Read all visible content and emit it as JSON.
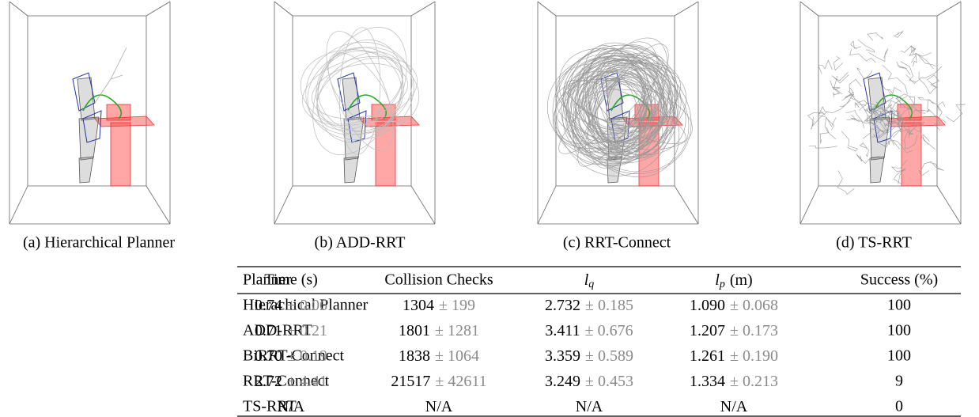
{
  "figures": [
    {
      "caption": "(a) Hierarchical Planner"
    },
    {
      "caption": "(b) ADD-RRT"
    },
    {
      "caption": "(c) RRT-Connect"
    },
    {
      "caption": "(d) TS-RRT"
    }
  ],
  "table": {
    "header": [
      {
        "text": "Planner"
      },
      {
        "text": "Time (s)"
      },
      {
        "text": "Collision Checks"
      },
      {
        "symbol": "l",
        "sub": "q"
      },
      {
        "symbol": "l",
        "sub": "p",
        "unit": "(m)"
      },
      {
        "text": "Success (%)"
      }
    ],
    "rows": [
      {
        "planner": "Hierachical Planner",
        "cells": [
          {
            "mean": "0.74",
            "std": "± 0.06"
          },
          {
            "mean": "1304",
            "std": "± 199"
          },
          {
            "mean": "2.732",
            "std": "± 0.185"
          },
          {
            "mean": "1.090",
            "std": "± 0.068"
          }
        ],
        "success": "100"
      },
      {
        "planner": "ADD-RRT",
        "cells": [
          {
            "mean": "0.71",
            "std": "± 0.21"
          },
          {
            "mean": "1801",
            "std": "± 1281"
          },
          {
            "mean": "3.411",
            "std": "± 0.676"
          },
          {
            "mean": "1.207",
            "std": "± 0.173"
          }
        ],
        "success": "100"
      },
      {
        "planner": "BiRRT-Connect",
        "cells": [
          {
            "mean": "0.70",
            "std": "± 0.19"
          },
          {
            "mean": "1838",
            "std": "± 1064"
          },
          {
            "mean": "3.359",
            "std": "± 0.589"
          },
          {
            "mean": "1.261",
            "std": "± 0.190"
          }
        ],
        "success": "100"
      },
      {
        "planner": "RRT-Connect",
        "cells": [
          {
            "mean": "2.72",
            "std": "± 4.41"
          },
          {
            "mean": "21517",
            "std": "± 42611"
          },
          {
            "mean": "3.249",
            "std": "± 0.453"
          },
          {
            "mean": "1.334",
            "std": "± 0.213"
          }
        ],
        "success": "9"
      },
      {
        "planner": "TS-RRT",
        "cells": [
          {
            "mean": "N/A"
          },
          {
            "mean": "N/A"
          },
          {
            "mean": "N/A"
          },
          {
            "mean": "N/A"
          }
        ],
        "success": "0"
      }
    ]
  }
}
